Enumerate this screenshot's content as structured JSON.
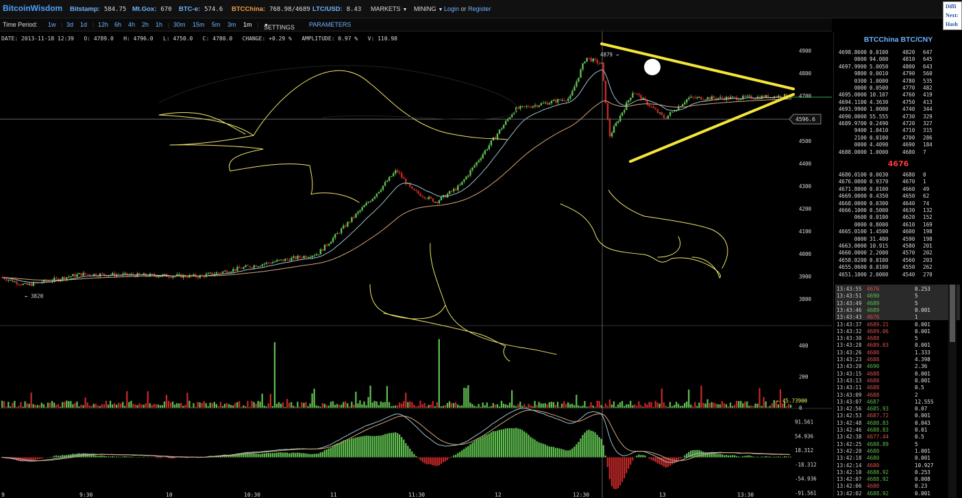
{
  "topbar": {
    "logo": "BitcoinWisdom",
    "tickers": [
      {
        "label": "Bitstamp:",
        "value": "584.75",
        "highlight": false
      },
      {
        "label": "Mt.Gox:",
        "value": "670",
        "highlight": false
      },
      {
        "label": "BTC-e:",
        "value": "574.6",
        "highlight": false
      },
      {
        "label": "BTCChina:",
        "value": "768.98/4689",
        "highlight": true
      },
      {
        "label": "LTC/USD:",
        "value": "8.43",
        "highlight": false
      }
    ],
    "menus": [
      "MARKETS",
      "MINING"
    ],
    "login": "Login",
    "or": "or",
    "register": "Register",
    "side_box": [
      "Diffi",
      "Next:",
      "Hash"
    ]
  },
  "periodbar": {
    "label": "Time Period:",
    "periods": [
      "1w",
      "3d",
      "1d",
      "12h",
      "6h",
      "4h",
      "2h",
      "1h",
      "30m",
      "15m",
      "5m",
      "3m",
      "1m"
    ],
    "active": "1m",
    "settings": "SETTINGS",
    "parameters": "PARAMETERS"
  },
  "infobar": "DATE: 2013-11-18 12:39   O: 4789.0   H: 4796.0   L: 4750.0   C: 4780.0   CHANGE: +0.29 %   AMPLITUDE: 0.97 %   V: 110.98",
  "colors": {
    "up": "#5fbf4f",
    "down": "#c82828",
    "ema_fast": "#9fc3d6",
    "ema_slow": "#d9a878",
    "link": "#6fb3ff",
    "drawing": "#f2e86a",
    "triangle": "#f5e53a"
  },
  "chart_data": [
    {
      "type": "candlestick",
      "title": "",
      "ylim": [
        3700,
        4950
      ],
      "ytick_labels": [
        "4900",
        "4800",
        "4700",
        "4600",
        "4500",
        "4400",
        "4300",
        "4200",
        "4100",
        "4000",
        "3900",
        "3800"
      ],
      "xtick_labels": [
        "9",
        "9:30",
        "10",
        "10:30",
        "11",
        "11:30",
        "12",
        "12:30",
        "13",
        "13:30"
      ],
      "key_points": [
        {
          "t": 0,
          "price": 3895
        },
        {
          "t": 0.03,
          "price": 3860
        },
        {
          "t": 0.1,
          "price": 3910
        },
        {
          "t": 0.25,
          "price": 3900
        },
        {
          "t": 0.33,
          "price": 3955
        },
        {
          "t": 0.4,
          "price": 4000
        },
        {
          "t": 0.47,
          "price": 4250
        },
        {
          "t": 0.5,
          "price": 4370
        },
        {
          "t": 0.52,
          "price": 4280
        },
        {
          "t": 0.55,
          "price": 4230
        },
        {
          "t": 0.58,
          "price": 4300
        },
        {
          "t": 0.65,
          "price": 4640
        },
        {
          "t": 0.72,
          "price": 4690
        },
        {
          "t": 0.74,
          "price": 4870
        },
        {
          "t": 0.76,
          "price": 4840
        },
        {
          "t": 0.77,
          "price": 4520
        },
        {
          "t": 0.8,
          "price": 4720
        },
        {
          "t": 0.84,
          "price": 4600
        },
        {
          "t": 0.87,
          "price": 4690
        },
        {
          "t": 0.93,
          "price": 4690
        },
        {
          "t": 1.0,
          "price": 4700
        }
      ],
      "annotations": [
        "4879",
        "3820",
        "4596.6"
      ]
    },
    {
      "type": "bar",
      "title": "Volume",
      "ytick_labels": [
        "400",
        "200",
        "0"
      ],
      "last_value": "45.73900"
    },
    {
      "type": "bar",
      "title": "MACD",
      "ytick_labels": [
        "91.561",
        "54.936",
        "18.312",
        "-18.312",
        "-54.936",
        "-91.561"
      ]
    }
  ],
  "orderbook": {
    "title": "BTCChina BTC/CNY",
    "asks": [
      [
        "4698.8600",
        "0.0100",
        "4820",
        "647"
      ],
      [
        "0000",
        "94.000",
        "4810",
        "645"
      ],
      [
        "4697.9900",
        "5.0050",
        "4800",
        "643"
      ],
      [
        "9800",
        "0.0010",
        "4790",
        "560"
      ],
      [
        "0300",
        "1.0000",
        "4780",
        "535"
      ],
      [
        "0000",
        "0.0500",
        "4770",
        "482"
      ],
      [
        "4695.0000",
        "10.107",
        "4760",
        "419"
      ],
      [
        "4694.1100",
        "4.3630",
        "4750",
        "413"
      ],
      [
        "4693.9900",
        "1.0000",
        "4740",
        "344"
      ],
      [
        "4690.0000",
        "55.555",
        "4730",
        "329"
      ],
      [
        "4689.9700",
        "0.2490",
        "4720",
        "327"
      ],
      [
        "9400",
        "1.0410",
        "4710",
        "315"
      ],
      [
        "2100",
        "0.0100",
        "4700",
        "286"
      ],
      [
        "0000",
        "4.4090",
        "4690",
        "184"
      ],
      [
        "4688.0000",
        "1.0000",
        "4680",
        "7"
      ]
    ],
    "last_price": "4676",
    "bids": [
      [
        "4680.0100",
        "0.0030",
        "4680",
        "0"
      ],
      [
        "4676.0000",
        "0.9370",
        "4670",
        "1"
      ],
      [
        "4671.8000",
        "0.0100",
        "4660",
        "49"
      ],
      [
        "4669.0000",
        "0.4350",
        "4650",
        "62"
      ],
      [
        "4668.0000",
        "0.0300",
        "4640",
        "74"
      ],
      [
        "4666.1000",
        "0.5000",
        "4630",
        "132"
      ],
      [
        "0600",
        "0.0100",
        "4620",
        "152"
      ],
      [
        "0000",
        "0.8000",
        "4610",
        "169"
      ],
      [
        "4665.0100",
        "1.4500",
        "4600",
        "198"
      ],
      [
        "0000",
        "31.400",
        "4590",
        "198"
      ],
      [
        "4663.0000",
        "10.915",
        "4580",
        "201"
      ],
      [
        "4660.0000",
        "2.2000",
        "4570",
        "202"
      ],
      [
        "4658.0200",
        "0.0100",
        "4560",
        "203"
      ],
      [
        "4655.0600",
        "0.0100",
        "4550",
        "262"
      ],
      [
        "4651.1000",
        "2.0000",
        "4540",
        "270"
      ]
    ]
  },
  "trades": [
    {
      "time": "13:43:55",
      "price": "4676",
      "amount": "0.253",
      "dir": "down"
    },
    {
      "time": "13:43:51",
      "price": "4690",
      "amount": "5",
      "dir": "up"
    },
    {
      "time": "13:43:49",
      "price": "4689",
      "amount": "5",
      "dir": "up"
    },
    {
      "time": "13:43:46",
      "price": "4689",
      "amount": "0.001",
      "dir": "up"
    },
    {
      "time": "13:43:43",
      "price": "4676",
      "amount": "1",
      "dir": "down"
    },
    {
      "time": "13:43:37",
      "price": "4689.21",
      "amount": "0.001",
      "dir": "down"
    },
    {
      "time": "13:43:32",
      "price": "4689.06",
      "amount": "0.001",
      "dir": "down"
    },
    {
      "time": "13:43:30",
      "price": "4688",
      "amount": "5",
      "dir": "down"
    },
    {
      "time": "13:43:28",
      "price": "4689.03",
      "amount": "0.001",
      "dir": "down"
    },
    {
      "time": "13:43:26",
      "price": "4688",
      "amount": "1.333",
      "dir": "down"
    },
    {
      "time": "13:43:23",
      "price": "4688",
      "amount": "4.398",
      "dir": "down"
    },
    {
      "time": "13:43:20",
      "price": "4690",
      "amount": "2.36",
      "dir": "up"
    },
    {
      "time": "13:43:15",
      "price": "4688",
      "amount": "0.001",
      "dir": "down"
    },
    {
      "time": "13:43:13",
      "price": "4688",
      "amount": "0.001",
      "dir": "down"
    },
    {
      "time": "13:43:11",
      "price": "4688",
      "amount": "0.5",
      "dir": "down"
    },
    {
      "time": "13:43:09",
      "price": "4688",
      "amount": "2",
      "dir": "down"
    },
    {
      "time": "13:43:07",
      "price": "4687",
      "amount": "12.555",
      "dir": "up"
    },
    {
      "time": "13:42:56",
      "price": "4685.93",
      "amount": "0.07",
      "dir": "up"
    },
    {
      "time": "13:42:53",
      "price": "4687.72",
      "amount": "0.001",
      "dir": "down"
    },
    {
      "time": "13:42:48",
      "price": "4688.83",
      "amount": "0.043",
      "dir": "up"
    },
    {
      "time": "13:42:46",
      "price": "4688.83",
      "amount": "0.01",
      "dir": "up"
    },
    {
      "time": "13:42:38",
      "price": "4677.44",
      "amount": "0.5",
      "dir": "down"
    },
    {
      "time": "13:42:25",
      "price": "4688.89",
      "amount": "5",
      "dir": "up"
    },
    {
      "time": "13:42:20",
      "price": "4680",
      "amount": "1.001",
      "dir": "up"
    },
    {
      "time": "13:42:18",
      "price": "4680",
      "amount": "0.001",
      "dir": "up"
    },
    {
      "time": "13:42:14",
      "price": "4680",
      "amount": "10.927",
      "dir": "down"
    },
    {
      "time": "13:42:10",
      "price": "4688.92",
      "amount": "0.253",
      "dir": "up"
    },
    {
      "time": "13:42:07",
      "price": "4688.92",
      "amount": "0.008",
      "dir": "up"
    },
    {
      "time": "13:42:06",
      "price": "4680",
      "amount": "0.23",
      "dir": "down"
    },
    {
      "time": "13:42:02",
      "price": "4688.92",
      "amount": "0.001",
      "dir": "up"
    }
  ]
}
